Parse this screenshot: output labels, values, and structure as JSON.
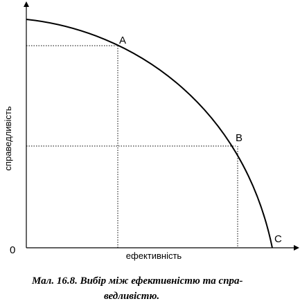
{
  "points": [
    "A",
    "B",
    "C"
  ],
  "origin": "0",
  "y_axis_label": "справедливість",
  "x_axis_label": "ефективність",
  "caption": [
    "Мал. 16.8. Вибір між ефективністю та спра-",
    "ведливістю."
  ]
}
